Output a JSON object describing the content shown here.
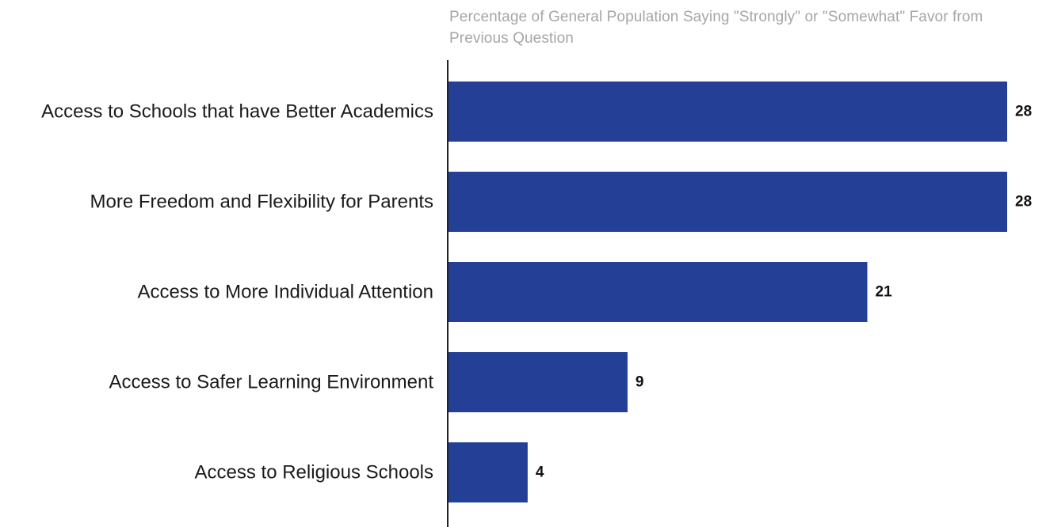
{
  "chart_data": {
    "type": "bar",
    "orientation": "horizontal",
    "title": "Percentage of General Population Saying \"Strongly\" or \"Somewhat\" Favor from Previous Question",
    "categories": [
      "Access to Schools that have Better Academics",
      "More Freedom and Flexibility for Parents",
      "Access to More Individual Attention",
      "Access to Safer Learning Environment",
      "Access to Religious Schools"
    ],
    "values": [
      28,
      28,
      21,
      9,
      4
    ],
    "data_labels": [
      "28",
      "28",
      "21",
      "9",
      "4"
    ],
    "xlim": [
      0,
      28
    ],
    "grid": false,
    "legend": "none",
    "bar_color": "#233f96"
  }
}
